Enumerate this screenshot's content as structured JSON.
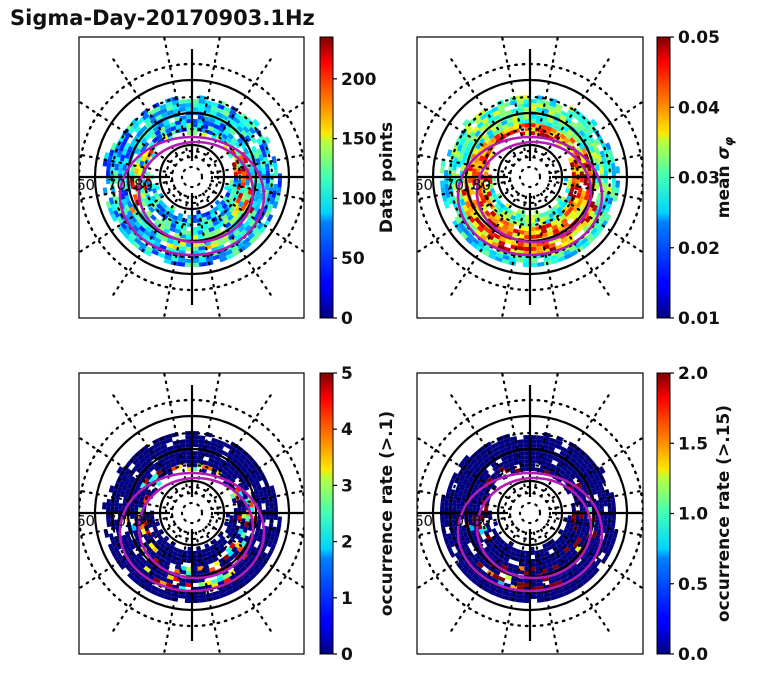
{
  "title": "Sigma-Day-20170903.1Hz",
  "chart_data": [
    {
      "type": "heatmap",
      "projection": "polar (magnetic latitude / MLT)",
      "title": "",
      "lat_ring_labels": [
        "60",
        "70",
        "80"
      ],
      "colormap": "jet",
      "colorbar": {
        "label": "Data points",
        "range": [
          0,
          235
        ],
        "ticks": [
          0,
          50,
          100,
          150,
          200
        ]
      },
      "background": "#ffffff",
      "data_density": "dense",
      "value_profile": "mostly 30-120, peaks ~200-230 on dawn/dusk flanks near 70-75 lat"
    },
    {
      "type": "heatmap",
      "projection": "polar (magnetic latitude / MLT)",
      "title": "",
      "lat_ring_labels": [
        "60",
        "70",
        "80"
      ],
      "colormap": "jet",
      "colorbar": {
        "label": "mean σ_φ",
        "range": [
          0.01,
          0.05
        ],
        "ticks": [
          "0.01",
          "0.02",
          "0.03",
          "0.04",
          "0.05"
        ]
      },
      "value_profile": "outer ring ~0.02-0.03, inner auroral oval ~0.035-0.05"
    },
    {
      "type": "heatmap",
      "projection": "polar (magnetic latitude / MLT)",
      "title": "",
      "lat_ring_labels": [
        "60",
        "70",
        "80"
      ],
      "colormap": "jet",
      "colorbar": {
        "label": "occurrence rate (>.1)",
        "range": [
          0,
          5
        ],
        "ticks": [
          "0",
          "1",
          "2",
          "3",
          "4",
          "5"
        ]
      },
      "value_profile": "mostly 0, sparse bins 2-5 along auroral oval"
    },
    {
      "type": "heatmap",
      "projection": "polar (magnetic latitude / MLT)",
      "title": "",
      "lat_ring_labels": [
        "60",
        "70",
        "80"
      ],
      "colormap": "jet",
      "colorbar": {
        "label": "occurrence rate (>.15)",
        "range": [
          0.0,
          2.0
        ],
        "ticks": [
          "0.0",
          "0.5",
          "1.0",
          "1.5",
          "2.0"
        ]
      },
      "value_profile": "mostly 0, sparse bins ~2.0 along auroral oval"
    }
  ],
  "overlay": {
    "oval_color": "#b01cb4",
    "grid_color": "#000000",
    "oval_count": 2
  }
}
